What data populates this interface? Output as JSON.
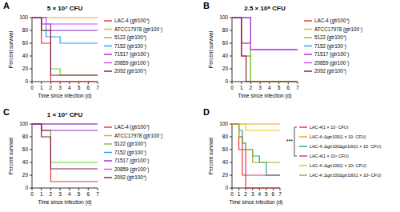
{
  "chart_data": [
    {
      "panel": "A",
      "type": "line",
      "line_style": "step",
      "title": "5 × 10⁷ CFU",
      "x_label": "Time since infection (d)",
      "y_label": "Percent survival",
      "x": [
        0,
        1,
        1.5,
        2,
        3,
        7
      ],
      "xlim": [
        0,
        7
      ],
      "xticks": [
        0,
        1,
        2,
        3,
        4,
        5,
        6,
        7
      ],
      "ylim": [
        0,
        100
      ],
      "yticks": [
        0,
        20,
        40,
        60,
        80,
        100
      ],
      "legend": "right",
      "series": [
        {
          "name": "LAC-4 (gtr100⁺)",
          "color": "#e8312f",
          "values": [
            100,
            60,
            60,
            0,
            0,
            0
          ]
        },
        {
          "name": "ATCC17978 (gtr100⁻)",
          "color": "#f5a623",
          "values": [
            100,
            100,
            100,
            100,
            100,
            100
          ]
        },
        {
          "name": "5122 (gtr100⁺)",
          "color": "#66cc33",
          "values": [
            100,
            80,
            80,
            20,
            10,
            10
          ]
        },
        {
          "name": "7152 (gtr100⁻)",
          "color": "#2a9df4",
          "values": [
            100,
            100,
            70,
            70,
            60,
            60
          ]
        },
        {
          "name": "71517 (gtr100⁻)",
          "color": "#9b27c8",
          "values": [
            100,
            90,
            90,
            80,
            80,
            80
          ]
        },
        {
          "name": "20859 (gtr100⁻)",
          "color": "#e040fb",
          "values": [
            100,
            100,
            90,
            90,
            90,
            90
          ]
        },
        {
          "name": "2092 (gtr100⁺)",
          "color": "#8b1a3a",
          "values": [
            100,
            80,
            80,
            10,
            10,
            10
          ]
        }
      ]
    },
    {
      "panel": "B",
      "type": "line",
      "line_style": "step",
      "title": "2.5 × 10⁸ CFU",
      "x_label": "Time since infection (d)",
      "y_label": "Percent survival",
      "x": [
        0,
        1,
        1.5,
        2,
        7
      ],
      "xlim": [
        0,
        7
      ],
      "xticks": [
        0,
        1,
        2,
        3,
        4,
        5,
        6,
        7
      ],
      "ylim": [
        0,
        100
      ],
      "yticks": [
        0,
        20,
        40,
        60,
        80,
        100
      ],
      "legend": "right",
      "series": [
        {
          "name": "LAC-4 (gtr100⁺)",
          "color": "#e8312f",
          "values": [
            100,
            40,
            40,
            0,
            0
          ]
        },
        {
          "name": "ATCC17978 (gtr100⁻)",
          "color": "#f5a623",
          "values": [
            100,
            60,
            60,
            0,
            0
          ]
        },
        {
          "name": "5122 (gtr100⁺)",
          "color": "#66cc33",
          "values": [
            100,
            60,
            60,
            0,
            0
          ]
        },
        {
          "name": "7152 (gtr100⁻)",
          "color": "#2a9df4",
          "values": [
            100,
            100,
            100,
            50,
            50
          ]
        },
        {
          "name": "71517 (gtr100⁻)",
          "color": "#9b27c8",
          "values": [
            100,
            100,
            100,
            50,
            50
          ]
        },
        {
          "name": "20859 (gtr100⁻)",
          "color": "#e040fb",
          "values": [
            100,
            60,
            60,
            50,
            50
          ]
        },
        {
          "name": "2092 (gtr100⁺)",
          "color": "#8b1a3a",
          "values": [
            100,
            40,
            0,
            0,
            0
          ]
        }
      ]
    },
    {
      "panel": "C",
      "type": "line",
      "line_style": "step",
      "title": "1 × 10⁷ CFU",
      "x_label": "Time since infection (d)",
      "y_label": "Percent survival",
      "x": [
        0,
        1,
        2,
        7
      ],
      "xlim": [
        0,
        7
      ],
      "xticks": [
        0,
        1,
        2,
        3,
        4,
        5,
        6,
        7
      ],
      "ylim": [
        0,
        100
      ],
      "yticks": [
        0,
        20,
        40,
        60,
        80,
        100
      ],
      "legend": "right",
      "series": [
        {
          "name": "LAC-4 (gtr100⁺)",
          "color": "#e8312f",
          "values": [
            100,
            90,
            10,
            10
          ]
        },
        {
          "name": "ATCC17978 (gtr100⁻)",
          "color": "#f5a623",
          "values": [
            100,
            100,
            100,
            100
          ]
        },
        {
          "name": "5122 (gtr100⁺)",
          "color": "#66cc33",
          "values": [
            100,
            90,
            40,
            40
          ]
        },
        {
          "name": "7152 (gtr100⁻)",
          "color": "#2a9df4",
          "values": [
            100,
            100,
            100,
            100
          ]
        },
        {
          "name": "71517 (gtr100⁻)",
          "color": "#9b27c8",
          "values": [
            100,
            90,
            90,
            90
          ]
        },
        {
          "name": "20859 (gtr100⁻)",
          "color": "#e040fb",
          "values": [
            100,
            100,
            100,
            100
          ]
        },
        {
          "name": "2092 (gtr100⁺)",
          "color": "#8b1a3a",
          "values": [
            100,
            80,
            30,
            30
          ]
        }
      ]
    },
    {
      "panel": "D",
      "type": "line",
      "line_style": "step",
      "x_label": "Time since infection (d)",
      "y_label": "Percent survival",
      "annotation": "***",
      "x": [
        0,
        1,
        1.5,
        2,
        3,
        4,
        5,
        7
      ],
      "xlim": [
        0,
        7
      ],
      "xticks": [
        0,
        1,
        2,
        3,
        4,
        5,
        6,
        7
      ],
      "ylim": [
        0,
        100
      ],
      "yticks": [
        0,
        20,
        40,
        60,
        80,
        100
      ],
      "legend": "right",
      "series": [
        {
          "name": "LAC-4(1 × 10⁷ CFU)",
          "color": "#e8312f",
          "values": [
            100,
            60,
            20,
            0,
            0,
            0,
            0,
            0
          ]
        },
        {
          "name": "LAC-4::Δgtr100(1 × 10⁷ CFU)",
          "color": "#f0a030",
          "values": [
            100,
            100,
            100,
            100,
            100,
            100,
            100,
            100
          ]
        },
        {
          "name": "LAC-4::Δgtr100Δgtr100(1 × 10⁷ CFU)",
          "color": "#1aa3a3",
          "values": [
            100,
            90,
            70,
            60,
            50,
            40,
            20,
            20
          ]
        },
        {
          "name": "LAC-4(1 × 10⁶ CFU)",
          "color": "#d6336c",
          "values": [
            100,
            80,
            60,
            20,
            20,
            20,
            20,
            20
          ]
        },
        {
          "name": "LAC-4::Δgtr100(1 × 10⁶ CFU)",
          "color": "#e6c619",
          "values": [
            100,
            100,
            100,
            90,
            90,
            90,
            90,
            90
          ]
        },
        {
          "name": "LAC-4::Δgtr100Δgtr100(1 × 10⁶ CFU)",
          "color": "#9aaa30",
          "values": [
            100,
            80,
            70,
            60,
            40,
            40,
            40,
            40
          ]
        }
      ]
    }
  ]
}
